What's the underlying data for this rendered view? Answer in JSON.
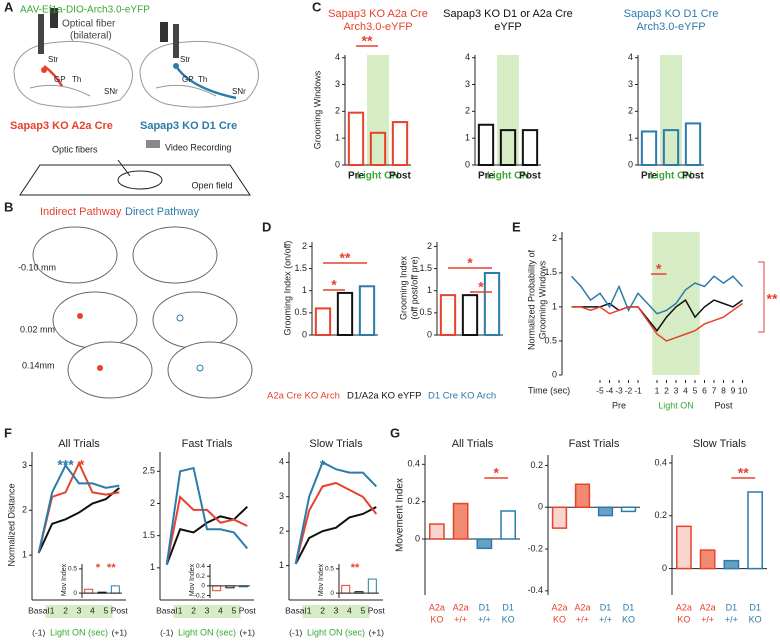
{
  "A": {
    "label": "A",
    "virus": "AAV-Ef1a-DIO-Arch3.0-eYFP",
    "fiber": [
      "Optical fiber",
      "(bilateral)"
    ],
    "regions": [
      "Str",
      "GP",
      "Th",
      "SNr"
    ],
    "left_name": "Sapap3 KO A2a Cre",
    "right_name": "Sapap3 KO D1 Cre",
    "optic": "Optic fibers",
    "video": "Video Recording",
    "field": "Open field"
  },
  "B": {
    "label": "B",
    "indirect": "Indirect Pathway",
    "direct": "Direct Pathway",
    "levels": [
      "-0.10 mm",
      "0.02 mm",
      "0.14mm"
    ]
  },
  "C": {
    "label": "C",
    "ylabel": "Grooming Windows",
    "ylim": [
      0,
      4.1
    ],
    "yticks": [
      0,
      1,
      2,
      3,
      4
    ],
    "categories": [
      "Pre",
      "Light ON",
      "Post"
    ],
    "charts": [
      {
        "title": [
          "Sapap3 KO A2a Cre",
          "Arch3.0-eYFP"
        ],
        "color": "#e8412c",
        "values": [
          1.95,
          1.2,
          1.6
        ],
        "annotation": "**"
      },
      {
        "title": [
          "Sapap3 KO D1 or A2a Cre",
          "eYFP"
        ],
        "color": "#111111",
        "values": [
          1.5,
          1.3,
          1.3
        ]
      },
      {
        "title": [
          "Sapap3 KO D1 Cre",
          "Arch3.0-eYFP"
        ],
        "color": "#2b7bab",
        "values": [
          1.25,
          1.3,
          1.55
        ]
      }
    ]
  },
  "D": {
    "label": "D",
    "ylim": [
      0,
      2.1
    ],
    "yticks": [
      0,
      0.5,
      1,
      1.5,
      2
    ],
    "colors": [
      "#e8412c",
      "#111111",
      "#2b7bab"
    ],
    "legend": [
      "A2a Cre KO Arch",
      "D1/A2a KO eYFP",
      "D1 Cre KO Arch"
    ],
    "charts": [
      {
        "ylabel": [
          "Grooming Index (on/off)"
        ],
        "values": [
          0.6,
          0.95,
          1.1
        ],
        "annotations": [
          "*",
          "**"
        ]
      },
      {
        "ylabel": [
          "Grooming Index",
          "(off post/off pre)"
        ],
        "values": [
          0.9,
          0.9,
          1.4
        ],
        "annotations": [
          "*",
          "*"
        ]
      }
    ]
  },
  "E": {
    "label": "E",
    "ylabel": [
      "Normalized Probability of",
      "Grooming Windows"
    ],
    "ylim": [
      0,
      2.1
    ],
    "yticks": [
      0,
      0.5,
      1,
      1.5,
      2
    ],
    "xlabel": "Time (sec)",
    "xlim": [
      -9,
      11
    ],
    "xticks": [
      -5,
      -4,
      -3,
      -2,
      -1,
      1,
      2,
      3,
      4,
      5,
      6,
      7,
      8,
      9,
      10
    ],
    "periods": [
      "Pre",
      "Light ON",
      "Post"
    ],
    "annotations": [
      "*",
      "**"
    ],
    "x": [
      -8,
      -7,
      -6,
      -5,
      -4,
      -3,
      -2,
      -1,
      1,
      2,
      3,
      4,
      5,
      6,
      7,
      8,
      9,
      10
    ],
    "series": [
      {
        "color": "#111111",
        "values": [
          1,
          1,
          1,
          1,
          1.05,
          0.95,
          1,
          1,
          0.65,
          0.85,
          1,
          1.1,
          0.85,
          1,
          1.1,
          1.05,
          1,
          1.1
        ]
      },
      {
        "color": "#2b7bab",
        "values": [
          1.45,
          1.3,
          1.1,
          1.2,
          1,
          1.3,
          0.95,
          1.2,
          0.9,
          0.95,
          1.05,
          1.25,
          1.35,
          1.3,
          1.45,
          1.35,
          1.45,
          1.3
        ]
      },
      {
        "color": "#e8412c",
        "values": [
          1,
          1,
          0.95,
          1,
          0.9,
          0.95,
          1,
          1,
          0.6,
          0.5,
          0.55,
          0.6,
          0.65,
          0.75,
          0.8,
          0.85,
          0.95,
          1.05
        ]
      }
    ]
  },
  "F": {
    "label": "F",
    "ylabel": "Normalized Distance",
    "xlabel": "Light ON (sec)",
    "categories": [
      "Basal",
      "1",
      "2",
      "3",
      "4",
      "5",
      "Post"
    ],
    "basal_note": "(-1)",
    "post_note": "(+1)",
    "colors": [
      "#111111",
      "#e8412c",
      "#2b7bab"
    ],
    "inset_colors": [
      "#e8412c",
      "#111111",
      "#2b7bab"
    ],
    "inset_ylabel": "Mov Index",
    "charts": [
      {
        "title": "All Trials",
        "ylim": [
          0,
          3.3
        ],
        "yticks": [
          1,
          2,
          3
        ],
        "series": [
          [
            1.05,
            1.7,
            1.8,
            1.95,
            2.15,
            2.25,
            2.5
          ],
          [
            1.05,
            2.3,
            2.4,
            3.05,
            2.4,
            2.35,
            2.4
          ],
          [
            1.05,
            2.4,
            3,
            2.6,
            2.6,
            2.5,
            2.55
          ]
        ],
        "annotations": [
          {
            "text": "***",
            "color": "#2b7bab"
          },
          {
            "text": "*",
            "color": "#e8412c"
          }
        ],
        "inset": {
          "ylim": [
            -0.1,
            0.6
          ],
          "yticks": [
            0,
            0.5
          ],
          "values": [
            0.08,
            0.02,
            0.15
          ],
          "annotations": [
            "*",
            "**"
          ]
        }
      },
      {
        "title": "Fast Trials",
        "ylim": [
          0.5,
          2.8
        ],
        "yticks": [
          1,
          1.5,
          2,
          2.5
        ],
        "series": [
          [
            1.05,
            1.6,
            1.55,
            1.7,
            1.8,
            1.75,
            1.95
          ],
          [
            1.05,
            2.1,
            1.9,
            1.9,
            1.7,
            1.75,
            1.65
          ],
          [
            1.05,
            2.5,
            2.55,
            1.6,
            1.6,
            1.55,
            1.3
          ]
        ],
        "annotations": [],
        "inset": {
          "ylim": [
            -0.25,
            0.45
          ],
          "yticks": [
            -0.2,
            0,
            0.2,
            0.4
          ],
          "values": [
            -0.1,
            -0.04,
            -0.02
          ],
          "annotations": []
        }
      },
      {
        "title": "Slow Trials",
        "ylim": [
          0,
          4.3
        ],
        "yticks": [
          1,
          2,
          3,
          4
        ],
        "series": [
          [
            1.05,
            1.8,
            2,
            2.1,
            2.4,
            2.5,
            2.7
          ],
          [
            1.05,
            2.6,
            3.3,
            3.4,
            3.2,
            3,
            2.5
          ],
          [
            1.05,
            3,
            4,
            3.8,
            3.7,
            3.7,
            3.3
          ]
        ],
        "annotations": [
          {
            "text": "*",
            "color": "#2b7bab"
          }
        ],
        "inset": {
          "ylim": [
            -0.1,
            0.6
          ],
          "yticks": [
            0,
            0.5
          ],
          "values": [
            0.16,
            0.03,
            0.29
          ],
          "annotations": [
            "**"
          ]
        }
      }
    ]
  },
  "G": {
    "label": "G",
    "ylabel": "Movement Index",
    "categories": [
      [
        "A2a",
        "KO"
      ],
      [
        "A2a",
        "+/+"
      ],
      [
        "D1",
        "+/+"
      ],
      [
        "D1",
        "KO"
      ]
    ],
    "colors": [
      "#e8412c",
      "#e8412c",
      "#2b7bab",
      "#2b7bab"
    ],
    "fills": [
      "#f8d6ce",
      "#f08a70",
      "#6a9fc4",
      "#ffffff"
    ],
    "charts": [
      {
        "title": "All Trials",
        "ylim": [
          -0.3,
          0.45
        ],
        "yticks": [
          0,
          0.2,
          0.4
        ],
        "values": [
          0.08,
          0.19,
          -0.05,
          0.15
        ],
        "annotation": "*"
      },
      {
        "title": "Fast Trials",
        "ylim": [
          -0.42,
          0.25
        ],
        "yticks": [
          -0.4,
          -0.2,
          0,
          0.2
        ],
        "values": [
          -0.1,
          0.11,
          -0.04,
          -0.02
        ]
      },
      {
        "title": "Slow Trials",
        "ylim": [
          -0.1,
          0.43
        ],
        "yticks": [
          0,
          0.2,
          0.4
        ],
        "values": [
          0.16,
          0.07,
          0.03,
          0.29
        ],
        "annotation": "**"
      }
    ]
  }
}
